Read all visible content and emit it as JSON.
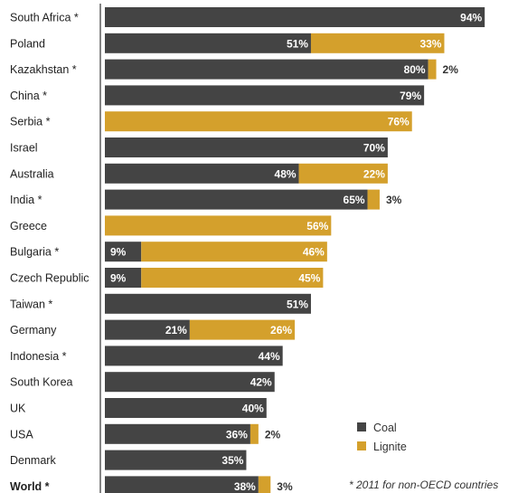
{
  "chart_data": {
    "type": "bar",
    "orientation": "horizontal",
    "stacked": true,
    "categories": [
      "South Africa *",
      "Poland",
      "Kazakhstan *",
      "China *",
      "Serbia *",
      "Israel",
      "Australia",
      "India *",
      "Greece",
      "Bulgaria *",
      "Czech Republic",
      "Taiwan *",
      "Germany",
      "Indonesia *",
      "South Korea",
      "UK",
      "USA",
      "Denmark",
      "World *"
    ],
    "series": [
      {
        "name": "Coal",
        "color": "#444444",
        "values": [
          94,
          51,
          80,
          79,
          0,
          70,
          48,
          65,
          0,
          9,
          9,
          51,
          21,
          44,
          42,
          40,
          36,
          35,
          38
        ]
      },
      {
        "name": "Lignite",
        "color": "#D4A02C",
        "values": [
          0,
          33,
          2,
          0,
          76,
          0,
          22,
          3,
          56,
          46,
          45,
          0,
          26,
          0,
          0,
          0,
          2,
          0,
          3
        ]
      }
    ],
    "bold_categories": [
      "World *"
    ],
    "xlim": [
      0,
      100
    ],
    "grid": false,
    "legend": {
      "position": "bottom-right",
      "entries": [
        "Coal",
        "Lignite"
      ]
    },
    "annotation": "* 2011 for non-OECD countries"
  }
}
